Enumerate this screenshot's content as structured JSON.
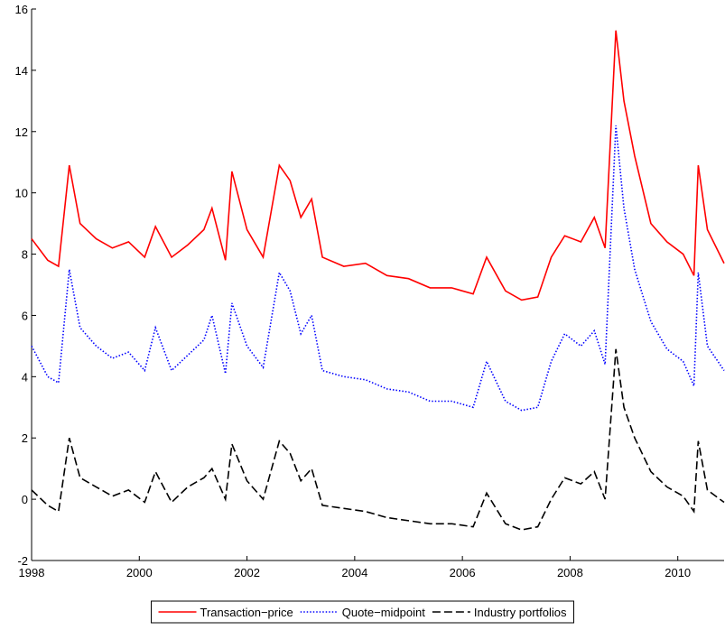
{
  "chart_data": {
    "type": "line",
    "x": [
      1998.0,
      1998.3,
      1998.5,
      1998.7,
      1998.9,
      1999.2,
      1999.5,
      1999.8,
      2000.1,
      2000.3,
      2000.6,
      2000.9,
      2001.2,
      2001.35,
      2001.6,
      2001.72,
      2002.0,
      2002.3,
      2002.6,
      2002.8,
      2003.0,
      2003.2,
      2003.4,
      2003.8,
      2004.2,
      2004.6,
      2005.0,
      2005.4,
      2005.8,
      2006.2,
      2006.45,
      2006.8,
      2007.1,
      2007.4,
      2007.65,
      2007.9,
      2008.2,
      2008.45,
      2008.65,
      2008.85,
      2009.0,
      2009.2,
      2009.5,
      2009.8,
      2010.1,
      2010.3,
      2010.38,
      2010.55,
      2010.86
    ],
    "series": [
      {
        "name": "Transaction−price",
        "color": "#ff0000",
        "dash": "solid",
        "values": [
          8.5,
          7.8,
          7.6,
          10.9,
          9.0,
          8.5,
          8.2,
          8.4,
          7.9,
          8.9,
          7.9,
          8.3,
          8.8,
          9.5,
          7.8,
          10.7,
          8.8,
          7.9,
          10.9,
          10.4,
          9.2,
          9.8,
          7.9,
          7.6,
          7.7,
          7.3,
          7.2,
          6.9,
          6.9,
          6.7,
          7.9,
          6.8,
          6.5,
          6.6,
          7.9,
          8.6,
          8.4,
          9.2,
          8.2,
          15.3,
          13.0,
          11.2,
          9.0,
          8.4,
          8.0,
          7.3,
          10.9,
          8.8,
          7.7
        ]
      },
      {
        "name": "Quote−midpoint",
        "color": "#0000ff",
        "dash": "dotted",
        "values": [
          5.0,
          4.0,
          3.8,
          7.5,
          5.6,
          5.0,
          4.6,
          4.8,
          4.2,
          5.6,
          4.2,
          4.7,
          5.2,
          6.0,
          4.1,
          6.4,
          5.0,
          4.3,
          7.4,
          6.8,
          5.4,
          6.0,
          4.2,
          4.0,
          3.9,
          3.6,
          3.5,
          3.2,
          3.2,
          3.0,
          4.5,
          3.2,
          2.9,
          3.0,
          4.5,
          5.4,
          5.0,
          5.5,
          4.4,
          12.2,
          9.5,
          7.5,
          5.8,
          4.9,
          4.5,
          3.7,
          7.4,
          5.0,
          4.2
        ]
      },
      {
        "name": "Industry portfolios",
        "color": "#000000",
        "dash": "dashed",
        "values": [
          0.3,
          -0.2,
          -0.4,
          2.0,
          0.7,
          0.4,
          0.1,
          0.3,
          -0.1,
          0.9,
          -0.1,
          0.4,
          0.7,
          1.0,
          0.0,
          1.8,
          0.6,
          0.0,
          1.9,
          1.5,
          0.6,
          1.0,
          -0.2,
          -0.3,
          -0.4,
          -0.6,
          -0.7,
          -0.8,
          -0.8,
          -0.9,
          0.2,
          -0.8,
          -1.0,
          -0.9,
          0.0,
          0.7,
          0.5,
          0.9,
          0.0,
          4.9,
          3.0,
          2.0,
          0.9,
          0.4,
          0.1,
          -0.4,
          1.9,
          0.3,
          -0.1
        ]
      }
    ],
    "xlim": [
      1998,
      2010.86
    ],
    "xticks": [
      1998,
      2000,
      2002,
      2004,
      2006,
      2008,
      2010
    ],
    "ylim": [
      -2,
      16
    ],
    "yticks": [
      -2,
      0,
      2,
      4,
      6,
      8,
      10,
      12,
      14,
      16
    ],
    "legend": "bottom"
  }
}
